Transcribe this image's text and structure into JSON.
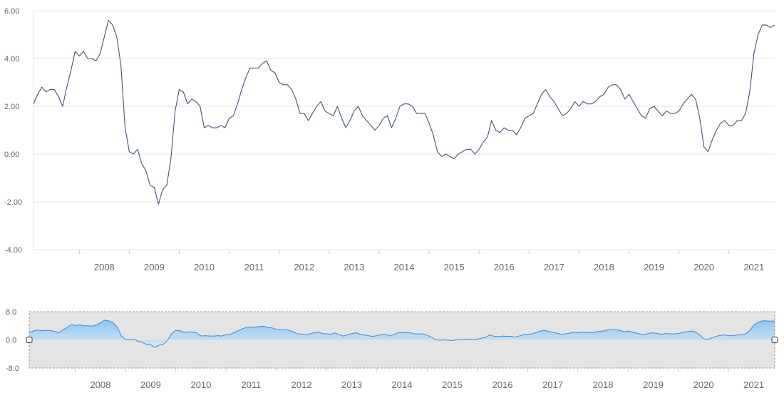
{
  "chart_data": [
    {
      "type": "line",
      "title": "",
      "xlabel": "",
      "ylabel": "",
      "ylim": [
        -4,
        6
      ],
      "xlim": [
        "2007-02",
        "2021-11"
      ],
      "y_ticks": [
        "-4.00",
        "-2.00",
        "0.00",
        "2.00",
        "4.00",
        "6.00"
      ],
      "x_ticks": [
        "2008",
        "2009",
        "2010",
        "2011",
        "2012",
        "2013",
        "2014",
        "2015",
        "2016",
        "2017",
        "2018",
        "2019",
        "2020",
        "2021"
      ],
      "grid": "horizontal",
      "colors": {
        "line": "#3f5577",
        "grid": "#e6e6e6",
        "tick_text": "#666666"
      },
      "series": [
        {
          "x_start": "2007-02",
          "x_step": "1 month",
          "values": [
            2.1,
            2.5,
            2.8,
            2.6,
            2.7,
            2.7,
            2.4,
            2.0,
            2.8,
            3.5,
            4.3,
            4.1,
            4.3,
            4.0,
            4.0,
            3.9,
            4.2,
            4.9,
            5.6,
            5.4,
            4.9,
            3.7,
            1.1,
            0.1,
            0.0,
            0.2,
            -0.4,
            -0.7,
            -1.3,
            -1.4,
            -2.1,
            -1.5,
            -1.3,
            -0.2,
            1.8,
            2.7,
            2.6,
            2.1,
            2.3,
            2.2,
            2.0,
            1.1,
            1.2,
            1.1,
            1.1,
            1.2,
            1.1,
            1.5,
            1.6,
            2.1,
            2.7,
            3.2,
            3.6,
            3.6,
            3.6,
            3.8,
            3.9,
            3.5,
            3.4,
            3.0,
            2.9,
            2.9,
            2.7,
            2.3,
            1.7,
            1.7,
            1.4,
            1.7,
            2.0,
            2.2,
            1.8,
            1.7,
            1.6,
            2.0,
            1.5,
            1.1,
            1.4,
            1.8,
            2.0,
            1.6,
            1.4,
            1.2,
            1.0,
            1.2,
            1.5,
            1.6,
            1.1,
            1.5,
            2.0,
            2.1,
            2.1,
            2.0,
            1.7,
            1.7,
            1.7,
            1.3,
            0.8,
            0.1,
            -0.1,
            0.0,
            -0.1,
            -0.2,
            0.0,
            0.1,
            0.2,
            0.2,
            0.0,
            0.2,
            0.5,
            0.7,
            1.4,
            1.0,
            0.9,
            1.1,
            1.0,
            1.0,
            0.8,
            1.1,
            1.5,
            1.6,
            1.7,
            2.1,
            2.5,
            2.7,
            2.4,
            2.2,
            1.9,
            1.6,
            1.7,
            1.9,
            2.2,
            2.0,
            2.2,
            2.1,
            2.1,
            2.2,
            2.4,
            2.5,
            2.8,
            2.9,
            2.9,
            2.7,
            2.3,
            2.5,
            2.2,
            1.9,
            1.6,
            1.5,
            1.9,
            2.0,
            1.8,
            1.6,
            1.8,
            1.7,
            1.7,
            1.8,
            2.1,
            2.3,
            2.5,
            2.3,
            1.5,
            0.3,
            0.1,
            0.6,
            1.0,
            1.3,
            1.4,
            1.2,
            1.2,
            1.4,
            1.4,
            1.7,
            2.6,
            4.2,
            5.0,
            5.4,
            5.4,
            5.3,
            5.4
          ]
        }
      ]
    },
    {
      "type": "area",
      "title": "",
      "ylim": [
        -8,
        8
      ],
      "y_ticks": [
        "-8.0",
        "0.0",
        "8.0"
      ],
      "x_ticks": [
        "2008",
        "2009",
        "2010",
        "2011",
        "2012",
        "2013",
        "2014",
        "2015",
        "2016",
        "2017",
        "2018",
        "2019",
        "2020",
        "2021"
      ],
      "series_ref": "same series as main chart",
      "colors": {
        "area_top": "#8fc4ee",
        "area_bottom": "#d6eafa",
        "line": "#3a8ad8",
        "selection": "#e4e4e4",
        "selection_border": "#999999"
      }
    }
  ]
}
